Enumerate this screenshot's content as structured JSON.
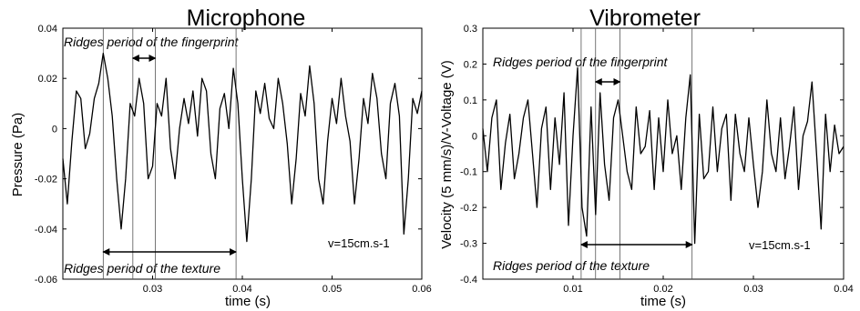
{
  "chart_data": [
    {
      "type": "line",
      "title": "Microphone",
      "xlabel": "time (s)",
      "ylabel": "Pressure (Pa)",
      "xlim": [
        0.02,
        0.06
      ],
      "ylim": [
        -0.06,
        0.04
      ],
      "xticks": [
        "0.03",
        "0.04",
        "0.05",
        "0.06"
      ],
      "yticks": [
        "0.04",
        "0.02",
        "0",
        "-0.02",
        "-0.04",
        "-0.06"
      ],
      "speed_label": "v=15cm.s-1",
      "annotation_fingerprint": "Ridges period of the fingerprint",
      "annotation_texture": "Ridges period of the texture",
      "vertical_markers": [
        0.0245,
        0.0278,
        0.0303,
        0.0393
      ],
      "series": [
        {
          "x": [
            0.02,
            0.0205,
            0.021,
            0.0215,
            0.022,
            0.0225,
            0.023,
            0.0235,
            0.024,
            0.0245,
            0.025,
            0.0255,
            0.026,
            0.0265,
            0.027,
            0.0275,
            0.028,
            0.0285,
            0.029,
            0.0295,
            0.03,
            0.0305,
            0.031,
            0.0315,
            0.032,
            0.0325,
            0.033,
            0.0335,
            0.034,
            0.0345,
            0.035,
            0.0355,
            0.036,
            0.0365,
            0.037,
            0.0375,
            0.038,
            0.0385,
            0.039,
            0.0395,
            0.04,
            0.0405,
            0.041,
            0.0415,
            0.042,
            0.0425,
            0.043,
            0.0435,
            0.044,
            0.0445,
            0.045,
            0.0455,
            0.046,
            0.0465,
            0.047,
            0.0475,
            0.048,
            0.0485,
            0.049,
            0.0495,
            0.05,
            0.0505,
            0.051,
            0.0515,
            0.052,
            0.0525,
            0.053,
            0.0535,
            0.054,
            0.0545,
            0.055,
            0.0555,
            0.056,
            0.0565,
            0.057,
            0.0575,
            0.058,
            0.0585,
            0.059,
            0.0595,
            0.06
          ],
          "y": [
            -0.012,
            -0.03,
            -0.005,
            0.015,
            0.012,
            -0.008,
            -0.002,
            0.012,
            0.018,
            0.03,
            0.02,
            0.005,
            -0.02,
            -0.04,
            -0.02,
            0.01,
            0.005,
            0.02,
            0.01,
            -0.02,
            -0.015,
            0.01,
            0.005,
            0.02,
            -0.008,
            -0.02,
            0.0,
            0.012,
            0.002,
            0.015,
            -0.003,
            0.02,
            0.015,
            -0.01,
            -0.02,
            0.008,
            0.014,
            0.0,
            0.024,
            0.01,
            -0.02,
            -0.045,
            -0.02,
            0.015,
            0.006,
            0.018,
            0.004,
            0.0,
            0.02,
            0.01,
            -0.006,
            -0.03,
            -0.012,
            0.014,
            0.005,
            0.025,
            0.01,
            -0.02,
            -0.03,
            -0.005,
            0.012,
            0.002,
            0.02,
            0.005,
            -0.005,
            -0.03,
            -0.012,
            0.012,
            0.002,
            0.022,
            0.012,
            -0.01,
            -0.02,
            0.01,
            0.018,
            0.005,
            -0.042,
            -0.02,
            0.012,
            0.006,
            0.015
          ]
        }
      ]
    },
    {
      "type": "line",
      "title": "Vibrometer",
      "xlabel": "time (s)",
      "ylabel": "Velocity (5 mm/s)/V-Voltage (V)",
      "xlim": [
        0.0,
        0.04
      ],
      "ylim": [
        -0.4,
        0.3
      ],
      "xticks": [
        "0.01",
        "0.02",
        "0.03",
        "0.04"
      ],
      "yticks": [
        "0.3",
        "0.2",
        "0.1",
        "0",
        "-0.1",
        "-0.2",
        "-0.3",
        "-0.4"
      ],
      "speed_label": "v=15cm.s-1",
      "annotation_fingerprint": "Ridges period of the fingerprint",
      "annotation_texture": "Ridges period of the texture",
      "vertical_markers": [
        0.0109,
        0.0125,
        0.0152,
        0.0232
      ],
      "series": [
        {
          "x": [
            0.0,
            0.0005,
            0.001,
            0.0015,
            0.002,
            0.0025,
            0.003,
            0.0035,
            0.004,
            0.0045,
            0.005,
            0.0055,
            0.006,
            0.0065,
            0.007,
            0.0075,
            0.008,
            0.0085,
            0.009,
            0.0095,
            0.01,
            0.0105,
            0.011,
            0.0115,
            0.012,
            0.0125,
            0.013,
            0.0135,
            0.014,
            0.0145,
            0.015,
            0.0155,
            0.016,
            0.0165,
            0.017,
            0.0175,
            0.018,
            0.0185,
            0.019,
            0.0195,
            0.02,
            0.0205,
            0.021,
            0.0215,
            0.022,
            0.0225,
            0.023,
            0.0235,
            0.024,
            0.0245,
            0.025,
            0.0255,
            0.026,
            0.0265,
            0.027,
            0.0275,
            0.028,
            0.0285,
            0.029,
            0.0295,
            0.03,
            0.0305,
            0.031,
            0.0315,
            0.032,
            0.0325,
            0.033,
            0.0335,
            0.034,
            0.0345,
            0.035,
            0.0355,
            0.036,
            0.0365,
            0.037,
            0.0375,
            0.038,
            0.0385,
            0.039,
            0.0395,
            0.04
          ],
          "y": [
            0.02,
            -0.1,
            0.05,
            0.1,
            -0.15,
            -0.02,
            0.06,
            -0.12,
            -0.05,
            0.05,
            0.1,
            -0.05,
            -0.2,
            0.02,
            0.08,
            -0.15,
            0.05,
            -0.08,
            0.12,
            -0.25,
            0.0,
            0.19,
            -0.2,
            -0.28,
            0.08,
            -0.22,
            0.12,
            -0.08,
            -0.18,
            0.05,
            0.1,
            0.0,
            -0.1,
            -0.15,
            0.08,
            -0.05,
            -0.03,
            0.07,
            -0.15,
            0.05,
            -0.1,
            0.1,
            -0.05,
            0.0,
            -0.15,
            0.05,
            0.17,
            -0.3,
            0.06,
            -0.12,
            -0.1,
            0.08,
            -0.1,
            0.02,
            0.06,
            -0.18,
            0.06,
            -0.05,
            -0.1,
            0.05,
            -0.08,
            -0.2,
            -0.1,
            0.1,
            -0.05,
            -0.1,
            0.05,
            -0.12,
            -0.03,
            0.08,
            -0.15,
            0.0,
            0.04,
            0.15,
            -0.05,
            -0.26,
            0.06,
            -0.1,
            0.03,
            -0.05,
            -0.03
          ]
        }
      ]
    }
  ]
}
